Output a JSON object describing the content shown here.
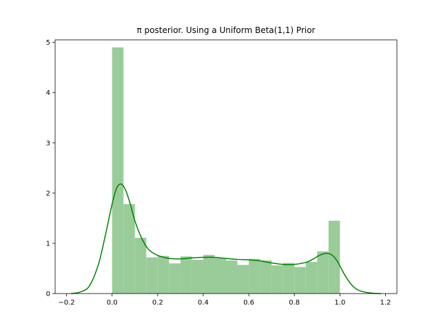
{
  "chart_data": {
    "type": "bar",
    "title": "π posterior. Using a Uniform Beta(1,1) Prior",
    "xlabel": "",
    "ylabel": "",
    "xlim": [
      -0.25,
      1.25
    ],
    "ylim": [
      0,
      5.05
    ],
    "grid": false,
    "legend": "none",
    "xticks": [
      -0.2,
      0.0,
      0.2,
      0.4,
      0.6,
      0.8,
      1.0,
      1.2
    ],
    "xtick_labels": [
      "−0.2",
      "0.0",
      "0.2",
      "0.4",
      "0.6",
      "0.8",
      "1.0",
      "1.2"
    ],
    "yticks": [
      0,
      1,
      2,
      3,
      4,
      5
    ],
    "ytick_labels": [
      "0",
      "1",
      "2",
      "3",
      "4",
      "5"
    ],
    "histogram": {
      "bin_edges": [
        0.0,
        0.05,
        0.1,
        0.15,
        0.2,
        0.25,
        0.3,
        0.35,
        0.4,
        0.45,
        0.5,
        0.55,
        0.6,
        0.65,
        0.7,
        0.75,
        0.8,
        0.85,
        0.9,
        0.95,
        1.0
      ],
      "values": [
        4.9,
        1.78,
        1.11,
        0.72,
        0.75,
        0.6,
        0.74,
        0.67,
        0.77,
        0.71,
        0.66,
        0.57,
        0.69,
        0.66,
        0.56,
        0.61,
        0.53,
        0.63,
        0.84,
        1.45
      ],
      "color": "#99cc99"
    },
    "kde": {
      "color": "#008000",
      "x": [
        -0.18,
        -0.14,
        -0.1,
        -0.06,
        -0.03,
        0.0,
        0.02,
        0.04,
        0.06,
        0.08,
        0.1,
        0.13,
        0.16,
        0.2,
        0.25,
        0.3,
        0.35,
        0.4,
        0.45,
        0.5,
        0.55,
        0.6,
        0.65,
        0.7,
        0.75,
        0.8,
        0.85,
        0.88,
        0.91,
        0.94,
        0.96,
        0.98,
        1.0,
        1.02,
        1.05,
        1.08,
        1.12,
        1.15,
        1.18
      ],
      "y": [
        0.0,
        0.03,
        0.15,
        0.58,
        1.15,
        1.78,
        2.1,
        2.18,
        2.05,
        1.78,
        1.45,
        1.1,
        0.88,
        0.76,
        0.7,
        0.69,
        0.71,
        0.72,
        0.72,
        0.7,
        0.68,
        0.67,
        0.65,
        0.61,
        0.58,
        0.58,
        0.62,
        0.68,
        0.76,
        0.8,
        0.78,
        0.7,
        0.55,
        0.38,
        0.18,
        0.07,
        0.02,
        0.005,
        0.0
      ]
    }
  }
}
